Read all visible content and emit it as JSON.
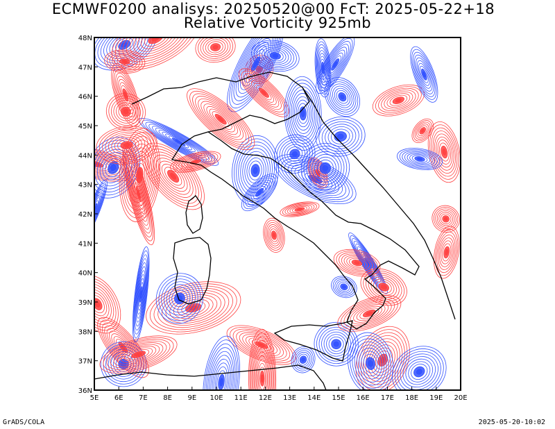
{
  "header": {
    "line1": "ECMWF0200 analisys: 20250520@00 FcT: 2025-05-22+18",
    "line2": "Relative Vorticity 925mb"
  },
  "map": {
    "lon_labels": [
      "5E",
      "6E",
      "7E",
      "8E",
      "9E",
      "10E",
      "11E",
      "12E",
      "13E",
      "14E",
      "15E",
      "16E",
      "17E",
      "18E",
      "19E",
      "20E"
    ],
    "lat_labels": [
      "36N",
      "37N",
      "38N",
      "39N",
      "40N",
      "41N",
      "42N",
      "43N",
      "44N",
      "45N",
      "46N",
      "47N",
      "48N"
    ],
    "lon_range": [
      5,
      20
    ],
    "lat_range": [
      36,
      48
    ],
    "colors": {
      "positive": "#ff4040",
      "negative": "#3050ff",
      "coast": "#000000"
    }
  },
  "footer": {
    "left": "GrADS/COLA",
    "right": "2025-05-20-10:02"
  }
}
